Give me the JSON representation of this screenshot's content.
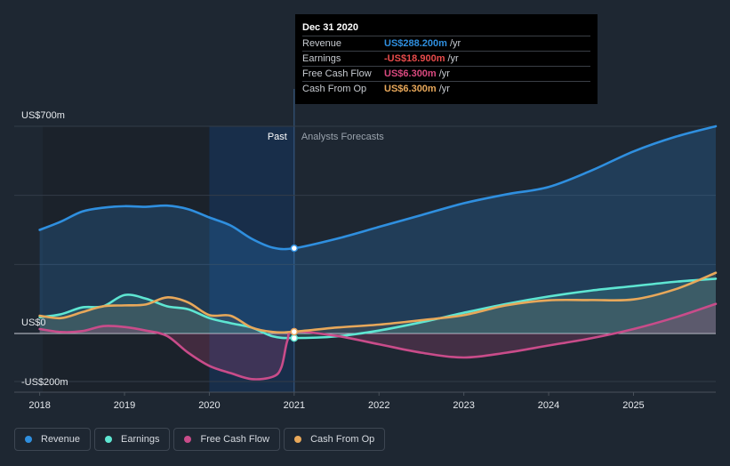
{
  "tooltip": {
    "date": "Dec 31 2020",
    "rows": [
      {
        "label": "Revenue",
        "value": "US$288.200m",
        "unit": "/yr",
        "color": "#2f8fdf"
      },
      {
        "label": "Earnings",
        "value": "-US$18.900m",
        "unit": "/yr",
        "color": "#e84b4b"
      },
      {
        "label": "Free Cash Flow",
        "value": "US$6.300m",
        "unit": "/yr",
        "color": "#d9497f"
      },
      {
        "label": "Cash From Op",
        "value": "US$6.300m",
        "unit": "/yr",
        "color": "#e8a85a"
      }
    ]
  },
  "legend": [
    {
      "label": "Revenue",
      "color": "#2f8fdf"
    },
    {
      "label": "Earnings",
      "color": "#5ee6d2"
    },
    {
      "label": "Free Cash Flow",
      "color": "#c94c8a"
    },
    {
      "label": "Cash From Op",
      "color": "#e8a85a"
    }
  ],
  "chart_data": {
    "type": "area",
    "past_label": "Past",
    "forecast_label": "Analysts Forecasts",
    "y_tick_labels": [
      "US$700m",
      "US$0",
      "-US$200m"
    ],
    "y_ticks": [
      700,
      0,
      -200
    ],
    "ylim": [
      -200,
      700
    ],
    "x_tick_labels": [
      "2018",
      "2019",
      "2020",
      "2021",
      "2022",
      "2023",
      "2024",
      "2025"
    ],
    "x_ticks": [
      2018,
      2019,
      2020,
      2021,
      2022,
      2023,
      2024,
      2025
    ],
    "xlim": [
      2017.7,
      2025.97
    ],
    "past_end": 2021,
    "highlight_start": 2020,
    "grid": true,
    "series": [
      {
        "name": "Revenue",
        "color": "#2f8fdf",
        "x": [
          2018.0,
          2018.25,
          2018.5,
          2018.75,
          2019.0,
          2019.25,
          2019.5,
          2019.75,
          2020.0,
          2020.25,
          2020.5,
          2020.75,
          2021.0,
          2021.5,
          2022.0,
          2022.5,
          2023.0,
          2023.5,
          2024.0,
          2024.5,
          2025.0,
          2025.5,
          2025.97
        ],
        "y": [
          350,
          378,
          412,
          425,
          430,
          428,
          432,
          420,
          392,
          365,
          320,
          290,
          288,
          320,
          360,
          400,
          440,
          470,
          495,
          550,
          615,
          665,
          700
        ]
      },
      {
        "name": "Earnings",
        "color": "#5ee6d2",
        "x": [
          2018.0,
          2018.25,
          2018.5,
          2018.75,
          2019.0,
          2019.25,
          2019.5,
          2019.75,
          2020.0,
          2020.25,
          2020.5,
          2020.75,
          2021.0,
          2021.5,
          2022.0,
          2022.5,
          2023.0,
          2023.5,
          2024.0,
          2024.5,
          2025.0,
          2025.5,
          2025.97
        ],
        "y": [
          55,
          65,
          88,
          92,
          130,
          118,
          92,
          82,
          52,
          35,
          20,
          -12,
          -19,
          -12,
          10,
          38,
          70,
          100,
          125,
          145,
          160,
          175,
          185
        ]
      },
      {
        "name": "Free Cash Flow",
        "color": "#c94c8a",
        "x": [
          2018.0,
          2018.25,
          2018.5,
          2018.75,
          2019.0,
          2019.25,
          2019.5,
          2019.75,
          2020.0,
          2020.25,
          2020.5,
          2020.75,
          2020.85,
          2020.92,
          2021.0,
          2021.5,
          2022.0,
          2022.5,
          2023.0,
          2023.5,
          2024.0,
          2024.5,
          2025.0,
          2025.5,
          2025.97
        ],
        "y": [
          15,
          5,
          8,
          25,
          22,
          10,
          -10,
          -80,
          -135,
          -165,
          -190,
          -180,
          -140,
          -30,
          6,
          -10,
          -45,
          -80,
          -100,
          -80,
          -50,
          -20,
          15,
          55,
          100
        ]
      },
      {
        "name": "Cash From Op",
        "color": "#e8a85a",
        "x": [
          2018.0,
          2018.25,
          2018.5,
          2018.75,
          2019.0,
          2019.25,
          2019.5,
          2019.75,
          2020.0,
          2020.25,
          2020.5,
          2020.75,
          2021.0,
          2021.5,
          2022.0,
          2022.5,
          2023.0,
          2023.5,
          2024.0,
          2024.5,
          2025.0,
          2025.5,
          2025.97
        ],
        "y": [
          60,
          52,
          72,
          92,
          95,
          98,
          122,
          105,
          62,
          60,
          20,
          5,
          6,
          20,
          30,
          45,
          62,
          95,
          112,
          113,
          115,
          150,
          205
        ]
      }
    ]
  }
}
